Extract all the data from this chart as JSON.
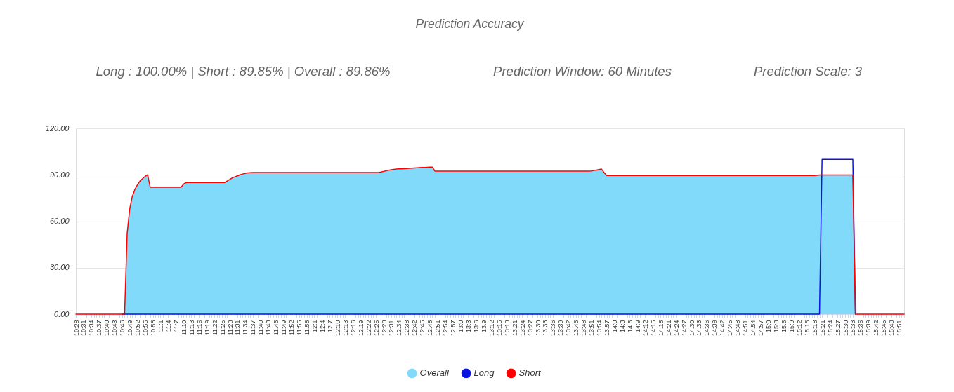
{
  "chart_data": {
    "type": "area",
    "title": "Prediction Accuracy",
    "annotations": [
      "Long : 100.00% | Short : 89.85% | Overall : 89.86%",
      "Prediction Window: 60 Minutes",
      "Prediction Scale: 3"
    ],
    "categories": [
      "10:28",
      null,
      null,
      "10:31",
      null,
      null,
      "10:34",
      null,
      null,
      "10:37",
      null,
      null,
      "10:40",
      null,
      null,
      "10:43",
      null,
      null,
      "10:46",
      null,
      null,
      "10:49",
      null,
      null,
      "10:52",
      null,
      null,
      "10:55",
      null,
      null,
      "10:58",
      null,
      null,
      "11:1",
      null,
      null,
      "11:4",
      null,
      null,
      "11:7",
      null,
      null,
      "11:10",
      null,
      null,
      "11:13",
      null,
      null,
      "11:16",
      null,
      null,
      "11:19",
      null,
      null,
      "11:22",
      null,
      null,
      "11:25",
      null,
      null,
      "11:28",
      null,
      null,
      "11:31",
      null,
      null,
      "11:34",
      null,
      null,
      "11:37",
      null,
      null,
      "11:40",
      null,
      null,
      "11:43",
      null,
      null,
      "11:46",
      null,
      null,
      "11:49",
      null,
      null,
      "11:52",
      null,
      null,
      "11:55",
      null,
      null,
      "11:58",
      null,
      null,
      "12:1",
      null,
      null,
      "12:4",
      null,
      null,
      "12:7",
      null,
      null,
      "12:10",
      null,
      null,
      "12:13",
      null,
      null,
      "12:16",
      null,
      null,
      "12:19",
      null,
      null,
      "12:22",
      null,
      null,
      "12:25",
      null,
      null,
      "12:28",
      null,
      null,
      "12:31",
      null,
      null,
      "12:34",
      null,
      null,
      "12:38",
      null,
      null,
      "12:42",
      null,
      null,
      "12:45",
      null,
      null,
      "12:48",
      null,
      null,
      "12:51",
      null,
      null,
      "12:54",
      null,
      null,
      "12:57",
      null,
      null,
      "13:0",
      null,
      null,
      "13:3",
      null,
      null,
      "13:6",
      null,
      null,
      "13:9",
      null,
      null,
      "13:12",
      null,
      null,
      "13:15",
      null,
      null,
      "13:18",
      null,
      null,
      "13:21",
      null,
      null,
      "13:24",
      null,
      null,
      "13:27",
      null,
      null,
      "13:30",
      null,
      null,
      "13:33",
      null,
      null,
      "13:36",
      null,
      null,
      "13:39",
      null,
      null,
      "13:42",
      null,
      null,
      "13:45",
      null,
      null,
      "13:48",
      null,
      null,
      "13:51",
      null,
      null,
      "13:54",
      null,
      null,
      "13:57",
      null,
      null,
      "14:0",
      null,
      null,
      "14:3",
      null,
      null,
      "14:6",
      null,
      null,
      "14:9",
      null,
      null,
      "14:12",
      null,
      null,
      "14:15",
      null,
      null,
      "14:18",
      null,
      null,
      "14:21",
      null,
      null,
      "14:24",
      null,
      null,
      "14:27",
      null,
      null,
      "14:30",
      null,
      null,
      "14:33",
      null,
      null,
      "14:36",
      null,
      null,
      "14:39",
      null,
      null,
      "14:42",
      null,
      null,
      "14:45",
      null,
      null,
      "14:48",
      null,
      null,
      "14:51",
      null,
      null,
      "14:54",
      null,
      null,
      "14:57",
      null,
      null,
      "15:0",
      null,
      null,
      "15:3",
      null,
      null,
      "15:6",
      null,
      null,
      "15:9",
      null,
      null,
      "15:12",
      null,
      null,
      "15:15",
      null,
      null,
      "15:18",
      null,
      null,
      "15:21",
      null,
      null,
      "15:24",
      null,
      null,
      "15:27",
      null,
      null,
      "15:30",
      null,
      null,
      "15:33",
      null,
      null,
      "15:36",
      null,
      null,
      "15:39",
      null,
      null,
      "15:42",
      null,
      null,
      "15:45",
      null,
      null,
      "15:48",
      null,
      null,
      "15:51",
      null,
      null
    ],
    "series": [
      {
        "name": "Overall",
        "color": "#81dafa",
        "values": [
          null,
          null,
          null,
          null,
          null,
          null,
          null,
          null,
          null,
          null,
          null,
          null,
          null,
          null,
          null,
          null,
          null,
          null,
          null,
          0,
          52,
          68,
          76,
          80.5,
          83.5,
          86,
          87.5,
          89,
          90,
          82,
          82,
          82,
          82,
          82,
          82,
          82,
          82,
          82,
          82,
          82,
          82,
          82,
          84,
          85,
          85,
          85,
          85,
          85,
          85,
          85,
          85,
          85,
          85,
          85,
          85,
          85,
          85,
          85,
          85,
          86,
          87,
          88,
          88.7,
          89.3,
          90,
          90.5,
          90.9,
          91.2,
          91.4,
          91.5,
          91.5,
          91.5,
          91.5,
          91.5,
          91.5,
          91.5,
          91.5,
          91.5,
          91.5,
          91.5,
          91.5,
          91.5,
          91.5,
          91.5,
          91.5,
          91.5,
          91.5,
          91.5,
          91.5,
          91.5,
          91.5,
          91.5,
          91.5,
          91.5,
          91.5,
          91.5,
          91.5,
          91.5,
          91.5,
          91.5,
          91.5,
          91.5,
          91.5,
          91.5,
          91.5,
          91.5,
          91.5,
          91.5,
          91.5,
          91.5,
          91.5,
          91.5,
          91.5,
          91.5,
          91.5,
          91.5,
          91.5,
          91.5,
          91.5,
          91.8,
          92.2,
          92.6,
          93,
          93.3,
          93.5,
          93.7,
          93.8,
          93.9,
          94,
          94.1,
          94.2,
          94.3,
          94.4,
          94.5,
          94.6,
          94.7,
          94.8,
          94.9,
          95,
          95,
          92.4,
          92.4,
          92.4,
          92.4,
          92.4,
          92.4,
          92.4,
          92.4,
          92.4,
          92.4,
          92.4,
          92.4,
          92.4,
          92.4,
          92.4,
          92.4,
          92.4,
          92.4,
          92.4,
          92.4,
          92.4,
          92.4,
          92.4,
          92.4,
          92.4,
          92.4,
          92.4,
          92.4,
          92.4,
          92.4,
          92.4,
          92.4,
          92.4,
          92.4,
          92.4,
          92.4,
          92.4,
          92.4,
          92.4,
          92.4,
          92.4,
          92.4,
          92.4,
          92.4,
          92.4,
          92.4,
          92.4,
          92.4,
          92.4,
          92.4,
          92.4,
          92.4,
          92.4,
          92.4,
          92.4,
          92.4,
          92.4,
          92.4,
          92.4,
          92.4,
          92.4,
          92.5,
          92.8,
          93.1,
          93.4,
          93.7,
          91.5,
          89.5,
          89.5,
          89.5,
          89.5,
          89.5,
          89.5,
          89.5,
          89.5,
          89.5,
          89.5,
          89.5,
          89.5,
          89.5,
          89.5,
          89.5,
          89.5,
          89.5,
          89.5,
          89.5,
          89.5,
          89.5,
          89.5,
          89.5,
          89.5,
          89.5,
          89.5,
          89.5,
          89.5,
          89.5,
          89.5,
          89.5,
          89.5,
          89.5,
          89.5,
          89.5,
          89.5,
          89.5,
          89.5,
          89.5,
          89.5,
          89.5,
          89.5,
          89.5,
          89.5,
          89.5,
          89.5,
          89.5,
          89.5,
          89.5,
          89.5,
          89.5,
          89.5,
          89.5,
          89.5,
          89.5,
          89.5,
          89.5,
          89.5,
          89.5,
          89.5,
          89.5,
          89.5,
          89.5,
          89.5,
          89.5,
          89.5,
          89.5,
          89.5,
          89.5,
          89.5,
          89.5,
          89.5,
          89.5,
          89.5,
          89.5,
          89.5,
          89.5,
          89.5,
          89.5,
          89.5,
          89.5,
          89.5,
          89.7,
          89.9,
          89.9,
          89.9,
          89.9,
          89.9,
          89.9,
          89.9,
          89.9,
          89.9,
          89.9,
          89.9,
          89.9,
          89.9,
          89.9,
          0,
          null,
          null,
          null,
          null,
          null,
          null,
          null,
          null,
          null,
          null,
          null,
          null,
          null,
          null,
          null,
          null,
          null,
          null,
          null
        ]
      },
      {
        "name": "Long",
        "type": "line",
        "color": "#0a14e0",
        "values": [
          null,
          null,
          null,
          null,
          null,
          null,
          null,
          null,
          null,
          null,
          null,
          null,
          null,
          null,
          null,
          null,
          null,
          null,
          0,
          0,
          0,
          0,
          0,
          0,
          0,
          0,
          0,
          0,
          0,
          0,
          0,
          0,
          0,
          0,
          0,
          0,
          0,
          0,
          0,
          0,
          0,
          0,
          0,
          0,
          0,
          0,
          0,
          0,
          0,
          0,
          0,
          0,
          0,
          0,
          0,
          0,
          0,
          0,
          0,
          0,
          0,
          0,
          0,
          0,
          0,
          0,
          0,
          0,
          0,
          0,
          0,
          0,
          0,
          0,
          0,
          0,
          0,
          0,
          0,
          0,
          0,
          0,
          0,
          0,
          0,
          0,
          0,
          0,
          0,
          0,
          0,
          0,
          0,
          0,
          0,
          0,
          0,
          0,
          0,
          0,
          0,
          0,
          0,
          0,
          0,
          0,
          0,
          0,
          0,
          0,
          0,
          0,
          0,
          0,
          0,
          0,
          0,
          0,
          0,
          0,
          0,
          0,
          0,
          0,
          0,
          0,
          0,
          0,
          0,
          0,
          0,
          0,
          0,
          0,
          0,
          0,
          0,
          0,
          0,
          0,
          0,
          0,
          0,
          0,
          0,
          0,
          0,
          0,
          0,
          0,
          0,
          0,
          0,
          0,
          0,
          0,
          0,
          0,
          0,
          0,
          0,
          0,
          0,
          0,
          0,
          0,
          0,
          0,
          0,
          0,
          0,
          0,
          0,
          0,
          0,
          0,
          0,
          0,
          0,
          0,
          0,
          0,
          0,
          0,
          0,
          0,
          0,
          0,
          0,
          0,
          0,
          0,
          0,
          0,
          0,
          0,
          0,
          0,
          0,
          0,
          0,
          0,
          0,
          0,
          0,
          0,
          0,
          0,
          0,
          0,
          0,
          0,
          0,
          0,
          0,
          0,
          0,
          0,
          0,
          0,
          0,
          0,
          0,
          0,
          0,
          0,
          0,
          0,
          0,
          0,
          0,
          0,
          0,
          0,
          0,
          0,
          0,
          0,
          0,
          0,
          0,
          0,
          0,
          0,
          0,
          0,
          0,
          0,
          0,
          0,
          0,
          0,
          0,
          0,
          0,
          0,
          0,
          0,
          0,
          0,
          0,
          0,
          0,
          0,
          0,
          0,
          0,
          0,
          0,
          0,
          0,
          0,
          0,
          0,
          0,
          0,
          0,
          0,
          0,
          0,
          0,
          0,
          0,
          0,
          0,
          0,
          0,
          0,
          0,
          0,
          0,
          100,
          100,
          100,
          100,
          100,
          100,
          100,
          100,
          100,
          100,
          100,
          100,
          100,
          0,
          null,
          null,
          null,
          null,
          null,
          null,
          null,
          null,
          null,
          null,
          null,
          null,
          null,
          null,
          null,
          null,
          null,
          null,
          null
        ]
      },
      {
        "name": "Short",
        "type": "line",
        "color": "#ff0000",
        "values": [
          0,
          0,
          0,
          0,
          0,
          0,
          0,
          0,
          0,
          0,
          0,
          0,
          0,
          0,
          0,
          0,
          0,
          0,
          0,
          0,
          52,
          68,
          76,
          80.5,
          83.5,
          86,
          87.5,
          89,
          90,
          82,
          82,
          82,
          82,
          82,
          82,
          82,
          82,
          82,
          82,
          82,
          82,
          82,
          84,
          85,
          85,
          85,
          85,
          85,
          85,
          85,
          85,
          85,
          85,
          85,
          85,
          85,
          85,
          85,
          85,
          86,
          87,
          88,
          88.7,
          89.3,
          90,
          90.5,
          90.9,
          91.2,
          91.4,
          91.5,
          91.5,
          91.5,
          91.5,
          91.5,
          91.5,
          91.5,
          91.5,
          91.5,
          91.5,
          91.5,
          91.5,
          91.5,
          91.5,
          91.5,
          91.5,
          91.5,
          91.5,
          91.5,
          91.5,
          91.5,
          91.5,
          91.5,
          91.5,
          91.5,
          91.5,
          91.5,
          91.5,
          91.5,
          91.5,
          91.5,
          91.5,
          91.5,
          91.5,
          91.5,
          91.5,
          91.5,
          91.5,
          91.5,
          91.5,
          91.5,
          91.5,
          91.5,
          91.5,
          91.5,
          91.5,
          91.5,
          91.5,
          91.5,
          91.5,
          91.8,
          92.2,
          92.6,
          93,
          93.3,
          93.5,
          93.7,
          93.8,
          93.9,
          94,
          94.1,
          94.2,
          94.3,
          94.4,
          94.5,
          94.6,
          94.7,
          94.8,
          94.9,
          95,
          95,
          92.4,
          92.4,
          92.4,
          92.4,
          92.4,
          92.4,
          92.4,
          92.4,
          92.4,
          92.4,
          92.4,
          92.4,
          92.4,
          92.4,
          92.4,
          92.4,
          92.4,
          92.4,
          92.4,
          92.4,
          92.4,
          92.4,
          92.4,
          92.4,
          92.4,
          92.4,
          92.4,
          92.4,
          92.4,
          92.4,
          92.4,
          92.4,
          92.4,
          92.4,
          92.4,
          92.4,
          92.4,
          92.4,
          92.4,
          92.4,
          92.4,
          92.4,
          92.4,
          92.4,
          92.4,
          92.4,
          92.4,
          92.4,
          92.4,
          92.4,
          92.4,
          92.4,
          92.4,
          92.4,
          92.4,
          92.4,
          92.4,
          92.4,
          92.4,
          92.4,
          92.4,
          92.5,
          92.8,
          93.1,
          93.4,
          93.7,
          91.5,
          89.5,
          89.5,
          89.5,
          89.5,
          89.5,
          89.5,
          89.5,
          89.5,
          89.5,
          89.5,
          89.5,
          89.5,
          89.5,
          89.5,
          89.5,
          89.5,
          89.5,
          89.5,
          89.5,
          89.5,
          89.5,
          89.5,
          89.5,
          89.5,
          89.5,
          89.5,
          89.5,
          89.5,
          89.5,
          89.5,
          89.5,
          89.5,
          89.5,
          89.5,
          89.5,
          89.5,
          89.5,
          89.5,
          89.5,
          89.5,
          89.5,
          89.5,
          89.5,
          89.5,
          89.5,
          89.5,
          89.5,
          89.5,
          89.5,
          89.5,
          89.5,
          89.5,
          89.5,
          89.5,
          89.5,
          89.5,
          89.5,
          89.5,
          89.5,
          89.5,
          89.5,
          89.5,
          89.5,
          89.5,
          89.5,
          89.5,
          89.5,
          89.5,
          89.5,
          89.5,
          89.5,
          89.5,
          89.5,
          89.5,
          89.5,
          89.5,
          89.5,
          89.5,
          89.5,
          89.5,
          89.5,
          89.5,
          89.7,
          89.9,
          89.9,
          89.9,
          89.9,
          89.9,
          89.9,
          89.9,
          89.9,
          89.9,
          89.9,
          89.9,
          89.9,
          89.9,
          89.9,
          0,
          0,
          0,
          0,
          0,
          0,
          0,
          0,
          0,
          0,
          0,
          0,
          0,
          0,
          0,
          0,
          0,
          0,
          0,
          0
        ]
      }
    ],
    "ylim": [
      0,
      120
    ],
    "yticks": [
      {
        "value": 0,
        "label": "0.00"
      },
      {
        "value": 30,
        "label": "30.00"
      },
      {
        "value": 60,
        "label": "60.00"
      },
      {
        "value": 90,
        "label": "90.00"
      },
      {
        "value": 120,
        "label": "120.00"
      }
    ],
    "grid": "y",
    "legend": "bottom",
    "line_style": "solid"
  }
}
